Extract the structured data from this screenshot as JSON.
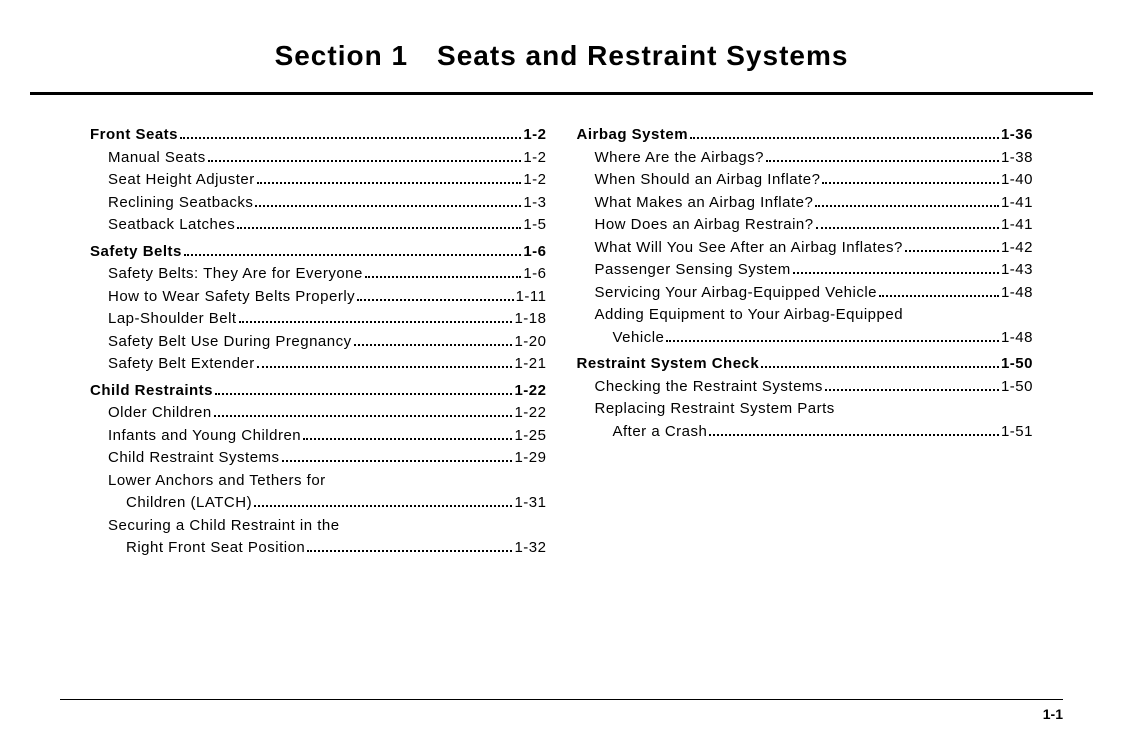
{
  "title": "Section 1 Seats and Restraint Systems",
  "pageNumber": "1-1",
  "left": [
    {
      "label": "Front Seats",
      "page": "1-2",
      "level": "major"
    },
    {
      "label": "Manual Seats",
      "page": "1-2",
      "level": "sub"
    },
    {
      "label": "Seat Height Adjuster",
      "page": "1-2",
      "level": "sub"
    },
    {
      "label": "Reclining Seatbacks",
      "page": "1-3",
      "level": "sub"
    },
    {
      "label": "Seatback Latches",
      "page": "1-5",
      "level": "sub"
    },
    {
      "label": "Safety Belts",
      "page": "1-6",
      "level": "major"
    },
    {
      "label": "Safety Belts: They Are for Everyone",
      "page": "1-6",
      "level": "sub"
    },
    {
      "label": "How to Wear Safety Belts Properly",
      "page": "1-11",
      "level": "sub"
    },
    {
      "label": "Lap-Shoulder Belt",
      "page": "1-18",
      "level": "sub"
    },
    {
      "label": "Safety Belt Use During Pregnancy",
      "page": "1-20",
      "level": "sub"
    },
    {
      "label": "Safety Belt Extender",
      "page": "1-21",
      "level": "sub"
    },
    {
      "label": "Child Restraints",
      "page": "1-22",
      "level": "major"
    },
    {
      "label": "Older Children",
      "page": "1-22",
      "level": "sub"
    },
    {
      "label": "Infants and Young Children",
      "page": "1-25",
      "level": "sub"
    },
    {
      "label": "Child Restraint Systems",
      "page": "1-29",
      "level": "sub"
    },
    {
      "label": "Lower Anchors and Tethers for",
      "page": null,
      "level": "sub"
    },
    {
      "label": "Children (LATCH)",
      "page": "1-31",
      "level": "subsub"
    },
    {
      "label": "Securing a Child Restraint in the",
      "page": null,
      "level": "sub"
    },
    {
      "label": "Right Front Seat Position",
      "page": "1-32",
      "level": "subsub"
    }
  ],
  "right": [
    {
      "label": "Airbag System",
      "page": "1-36",
      "level": "major"
    },
    {
      "label": "Where Are the Airbags?",
      "page": "1-38",
      "level": "sub"
    },
    {
      "label": "When Should an Airbag Inflate?",
      "page": "1-40",
      "level": "sub"
    },
    {
      "label": "What Makes an Airbag Inflate?",
      "page": "1-41",
      "level": "sub"
    },
    {
      "label": "How Does an Airbag Restrain?",
      "page": "1-41",
      "level": "sub"
    },
    {
      "label": "What Will You See After an Airbag Inflates?",
      "page": "1-42",
      "level": "sub"
    },
    {
      "label": "Passenger Sensing System",
      "page": "1-43",
      "level": "sub"
    },
    {
      "label": "Servicing Your Airbag-Equipped Vehicle",
      "page": "1-48",
      "level": "sub"
    },
    {
      "label": "Adding Equipment to Your Airbag-Equipped",
      "page": null,
      "level": "sub"
    },
    {
      "label": "Vehicle",
      "page": "1-48",
      "level": "subsub"
    },
    {
      "label": "Restraint System Check",
      "page": "1-50",
      "level": "major"
    },
    {
      "label": "Checking the Restraint Systems",
      "page": "1-50",
      "level": "sub"
    },
    {
      "label": "Replacing Restraint System Parts",
      "page": null,
      "level": "sub"
    },
    {
      "label": "After a Crash",
      "page": "1-51",
      "level": "subsub"
    }
  ]
}
